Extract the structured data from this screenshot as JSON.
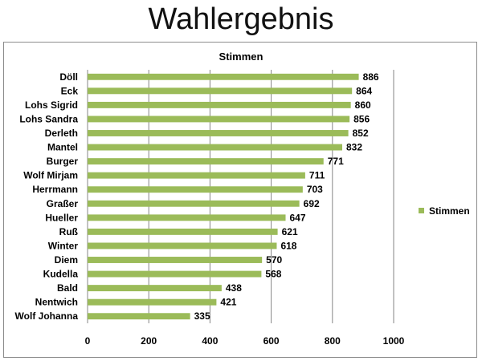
{
  "page": {
    "title": "Wahlergebnis"
  },
  "chart_data": {
    "type": "bar",
    "orientation": "horizontal",
    "title": "Stimmen",
    "xlabel": "",
    "ylabel": "",
    "categories": [
      "Döll",
      "Eck",
      "Lohs Sigrid",
      "Lohs Sandra",
      "Derleth",
      "Mantel",
      "Burger",
      "Wolf Mirjam",
      "Herrmann",
      "Graßer",
      "Hueller",
      "Ruß",
      "Winter",
      "Diem",
      "Kudella",
      "Bald",
      "Nentwich",
      "Wolf Johanna"
    ],
    "series": [
      {
        "name": "Stimmen",
        "color": "#9bbb59",
        "values": [
          886,
          864,
          860,
          856,
          852,
          832,
          771,
          711,
          703,
          692,
          647,
          621,
          618,
          570,
          568,
          438,
          421,
          335
        ]
      }
    ],
    "xlim": [
      0,
      1000
    ],
    "ticks": [
      "0",
      "200",
      "400",
      "600",
      "800",
      "1000"
    ],
    "tick_values": [
      0,
      200,
      400,
      600,
      800,
      1000
    ],
    "grid": true,
    "gridline_color": "#868686",
    "data_labels": true,
    "legend": {
      "position": "right"
    }
  }
}
